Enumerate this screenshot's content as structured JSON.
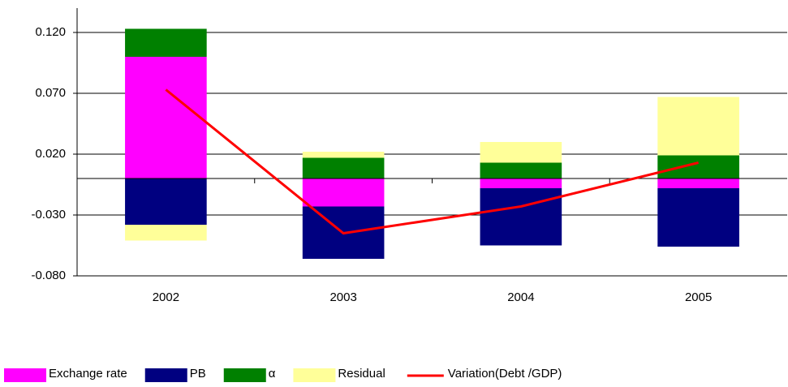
{
  "chart_data": {
    "type": "bar",
    "stacked": true,
    "categories": [
      "2002",
      "2003",
      "2004",
      "2005"
    ],
    "series": [
      {
        "name": "Exchange rate",
        "color": "#ff00ff",
        "values": [
          0.1,
          -0.023,
          -0.008,
          -0.008
        ]
      },
      {
        "name": "PB",
        "color": "#000080",
        "values": [
          -0.038,
          -0.043,
          -0.047,
          -0.048
        ]
      },
      {
        "name": "α",
        "color": "#008000",
        "values": [
          0.023,
          0.017,
          0.013,
          0.019
        ]
      },
      {
        "name": "Residual",
        "color": "#ffff99",
        "values": [
          -0.013,
          0.005,
          0.017,
          0.048
        ]
      },
      {
        "name": "Variation(Debt /GDP)",
        "color": "#ff0000",
        "type": "line",
        "values": [
          0.073,
          -0.045,
          -0.023,
          0.013
        ]
      }
    ],
    "ylim": [
      -0.08,
      0.14
    ],
    "yticks": [
      {
        "value": 0.12,
        "label": "0.120"
      },
      {
        "value": 0.07,
        "label": "0.070"
      },
      {
        "value": 0.02,
        "label": "0.020"
      },
      {
        "value": -0.03,
        "label": "-0.030"
      },
      {
        "value": -0.08,
        "label": "-0.080"
      }
    ],
    "grid": true,
    "legend": "bottom"
  }
}
